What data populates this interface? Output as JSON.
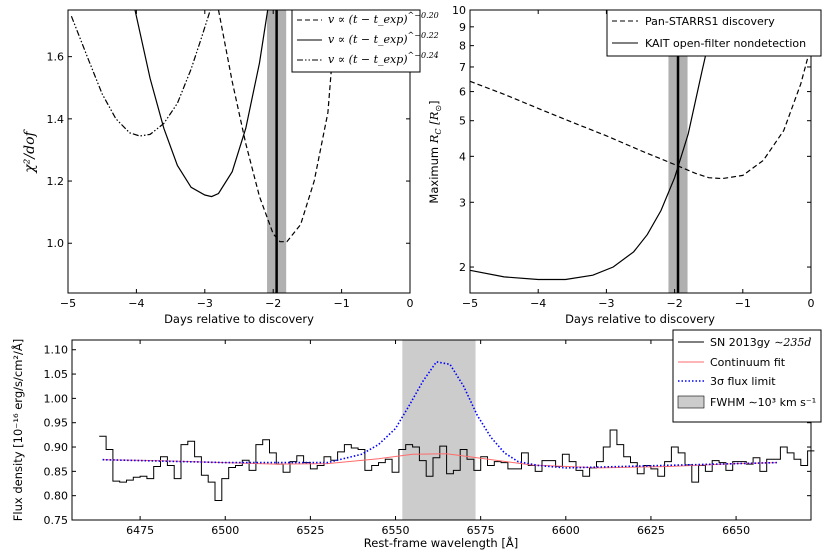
{
  "chart_data": [
    {
      "type": "line",
      "title": "",
      "xlabel": "Days relative to discovery",
      "ylabel": "χ²/dof",
      "xlim": [
        -5,
        0
      ],
      "ylim": [
        0.84,
        1.75
      ],
      "xticks": [
        "−5",
        "−4",
        "−3",
        "−2",
        "−1",
        "0"
      ],
      "yticks": [
        "1.0",
        "1.2",
        "1.4",
        "1.6"
      ],
      "legend_position": "top-right",
      "band": {
        "x0": -2.09,
        "x1": -1.81,
        "line": -1.95
      },
      "series": [
        {
          "name": "v ∝ (t − t_exp)^−0.20",
          "style": "dashed",
          "x": [
            -2.8,
            -2.6,
            -2.4,
            -2.2,
            -2.0,
            -1.9,
            -1.8,
            -1.6,
            -1.4,
            -1.2,
            -1.08
          ],
          "y": [
            1.75,
            1.52,
            1.32,
            1.15,
            1.03,
            1.005,
            1.005,
            1.06,
            1.2,
            1.42,
            1.75
          ]
        },
        {
          "name": "v ∝ (t − t_exp)^−0.22",
          "style": "solid",
          "x": [
            -4.02,
            -3.8,
            -3.6,
            -3.4,
            -3.2,
            -3.0,
            -2.9,
            -2.8,
            -2.6,
            -2.4,
            -2.2,
            -2.08
          ],
          "y": [
            1.75,
            1.53,
            1.37,
            1.25,
            1.18,
            1.155,
            1.15,
            1.16,
            1.23,
            1.37,
            1.58,
            1.75
          ]
        },
        {
          "name": "v ∝ (t − t_exp)^−0.24",
          "style": "dashdot",
          "x": [
            -4.95,
            -4.7,
            -4.5,
            -4.3,
            -4.1,
            -3.95,
            -3.8,
            -3.6,
            -3.4,
            -3.2,
            -3.05,
            -2.92
          ],
          "y": [
            1.73,
            1.59,
            1.48,
            1.4,
            1.355,
            1.345,
            1.35,
            1.385,
            1.45,
            1.56,
            1.66,
            1.75
          ]
        }
      ]
    },
    {
      "type": "line",
      "title": "",
      "xlabel": "Days relative to discovery",
      "ylabel": "Maximum R_C [R_⊙]",
      "xlim": [
        -5,
        0
      ],
      "yscale": "log",
      "ylim": [
        1.7,
        10
      ],
      "xticks": [
        "−5",
        "−4",
        "−3",
        "−2",
        "−1",
        "0"
      ],
      "yticks": [
        "2",
        "3",
        "4",
        "5",
        "6",
        "7",
        "8",
        "9",
        "10"
      ],
      "legend_position": "top-right",
      "band": {
        "x0": -2.09,
        "x1": -1.81,
        "line": -1.95
      },
      "series": [
        {
          "name": "Pan-STARRS1 discovery",
          "style": "dashed",
          "x": [
            -5,
            -4.5,
            -4,
            -3.5,
            -3,
            -2.5,
            -2,
            -1.7,
            -1.5,
            -1.3,
            -1.0,
            -0.7,
            -0.4,
            -0.15,
            0
          ],
          "y": [
            6.4,
            5.9,
            5.4,
            4.95,
            4.55,
            4.15,
            3.8,
            3.6,
            3.5,
            3.48,
            3.55,
            3.9,
            4.7,
            6.3,
            8.0
          ]
        },
        {
          "name": "KAIT open-filter nondetection",
          "style": "solid",
          "x": [
            -5,
            -4.5,
            -4,
            -3.6,
            -3.2,
            -2.9,
            -2.6,
            -2.4,
            -2.2,
            -2.0,
            -1.8,
            -1.6,
            -1.45,
            -1.32
          ],
          "y": [
            1.96,
            1.88,
            1.85,
            1.85,
            1.9,
            2.0,
            2.2,
            2.45,
            2.85,
            3.5,
            4.6,
            6.8,
            9.0,
            10.0
          ]
        }
      ]
    },
    {
      "type": "line",
      "title": "",
      "xlabel": "Rest-frame wavelength [Å]",
      "ylabel": "Flux density [10⁻¹⁶ erg/s/cm²/Å]",
      "xlim": [
        6455,
        6672
      ],
      "ylim": [
        0.75,
        1.12
      ],
      "xticks": [
        "6475",
        "6500",
        "6525",
        "6550",
        "6575",
        "6600",
        "6625",
        "6650"
      ],
      "yticks": [
        "0.75",
        "0.80",
        "0.85",
        "0.90",
        "0.95",
        "1.00",
        "1.05",
        "1.10"
      ],
      "legend_position": "top-right",
      "shaded_region": {
        "x0": 6552,
        "x1": 6573.5
      },
      "spectrum": {
        "name": "SN 2013gy ~235d",
        "style": "steps",
        "x0": 6464,
        "step": 2,
        "y": [
          0.922,
          0.895,
          0.83,
          0.828,
          0.832,
          0.838,
          0.84,
          0.835,
          0.86,
          0.88,
          0.862,
          0.835,
          0.905,
          0.912,
          0.88,
          0.842,
          0.828,
          0.79,
          0.835,
          0.858,
          0.862,
          0.873,
          0.852,
          0.905,
          0.915,
          0.888,
          0.865,
          0.848,
          0.87,
          0.882,
          0.868,
          0.855,
          0.862,
          0.88,
          0.873,
          0.89,
          0.905,
          0.898,
          0.895,
          0.852,
          0.862,
          0.868,
          0.875,
          0.848,
          0.895,
          0.905,
          0.9,
          0.872,
          0.84,
          0.878,
          0.902,
          0.845,
          0.852,
          0.895,
          0.875,
          0.852,
          0.88,
          0.862,
          0.87,
          0.868,
          0.855,
          0.855,
          0.888,
          0.862,
          0.85,
          0.872,
          0.872,
          0.86,
          0.885,
          0.87,
          0.852,
          0.84,
          0.857,
          0.87,
          0.9,
          0.935,
          0.905,
          0.88,
          0.868,
          0.845,
          0.862,
          0.855,
          0.84,
          0.87,
          0.9,
          0.888,
          0.863,
          0.828,
          0.862,
          0.85,
          0.872,
          0.868,
          0.852,
          0.87,
          0.87,
          0.865,
          0.878,
          0.85,
          0.875,
          0.875,
          0.9,
          0.888,
          0.875,
          0.862,
          0.892
        ]
      },
      "series": [
        {
          "name": "Continuum fit",
          "color": "#ff6b6b",
          "x": [
            6464,
            6480,
            6500,
            6515,
            6530,
            6545,
            6555,
            6565,
            6575,
            6590,
            6610,
            6630,
            6650,
            6662
          ],
          "y": [
            0.874,
            0.872,
            0.868,
            0.865,
            0.866,
            0.876,
            0.885,
            0.886,
            0.877,
            0.863,
            0.857,
            0.86,
            0.866,
            0.868
          ]
        },
        {
          "name": "3σ flux limit",
          "color": "#0000ff",
          "style": "dotted",
          "x": [
            6464,
            6500,
            6530,
            6540,
            6545,
            6550,
            6554,
            6558,
            6562,
            6566,
            6570,
            6574,
            6578,
            6582,
            6586,
            6592,
            6600,
            6662
          ],
          "y": [
            0.874,
            0.868,
            0.868,
            0.885,
            0.905,
            0.938,
            0.985,
            1.035,
            1.075,
            1.07,
            1.025,
            0.965,
            0.92,
            0.888,
            0.87,
            0.862,
            0.857,
            0.868
          ]
        }
      ],
      "legend_extra": "FWHM ∼10³ km s⁻¹"
    }
  ],
  "legends": {
    "p1": [
      "v ∝ (t − t_exp)",
      "^−0.20",
      "v ∝ (t − t_exp)",
      "^−0.22",
      "v ∝ (t − t_exp)",
      "^−0.24"
    ],
    "p2": [
      "Pan-STARRS1 discovery",
      "KAIT open-filter nondetection"
    ],
    "p3": [
      "SN 2013gy",
      "∼235d",
      "Continuum fit",
      "3σ flux limit",
      "FWHM ∼10³ km s⁻¹"
    ]
  },
  "labels": {
    "p1_ylabel": "χ²/dof",
    "p2_ylabel_a": "Maximum ",
    "p2_ylabel_b": "R",
    "p2_ylabel_c": "C",
    "p2_ylabel_d": " [R",
    "p2_ylabel_e": "⊙",
    "p2_ylabel_f": "]",
    "p3_ylabel": "Flux density [10⁻¹⁶ erg/s/cm²/Å]"
  },
  "colors": {
    "band": "#b0b0b0",
    "shade": "#cccccc",
    "continuum": "#ff6b6b",
    "limit": "#0000ff"
  }
}
